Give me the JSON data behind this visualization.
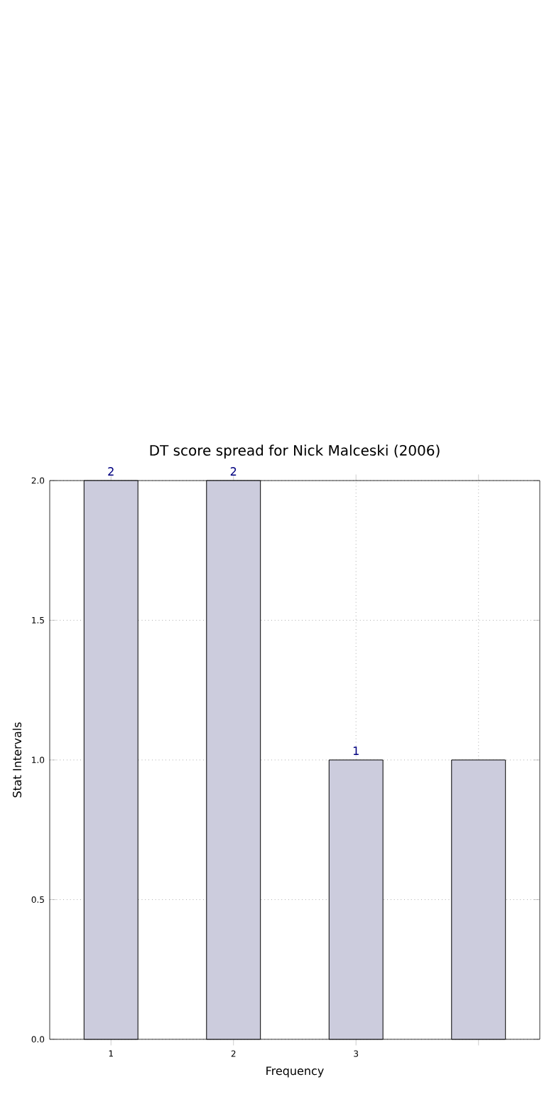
{
  "chart_data": {
    "type": "bar",
    "title": "DT score spread for Nick Malceski (2006)",
    "xlabel": "Frequency",
    "ylabel": "Stat Intervals",
    "categories": [
      "1",
      "2",
      "3",
      null
    ],
    "values": [
      2,
      2,
      1,
      1
    ],
    "value_labels": [
      "2",
      "2",
      "1",
      null
    ],
    "color": "#ccccdd",
    "ylim": [
      0,
      2
    ],
    "yticks": [
      {
        "value": 0,
        "label": "0.0"
      },
      {
        "value": 0.5,
        "label": "0.5"
      },
      {
        "value": 1,
        "label": "1.0"
      },
      {
        "value": 1.5,
        "label": "1.5"
      },
      {
        "value": 2,
        "label": "2.0"
      }
    ],
    "grid": true
  }
}
